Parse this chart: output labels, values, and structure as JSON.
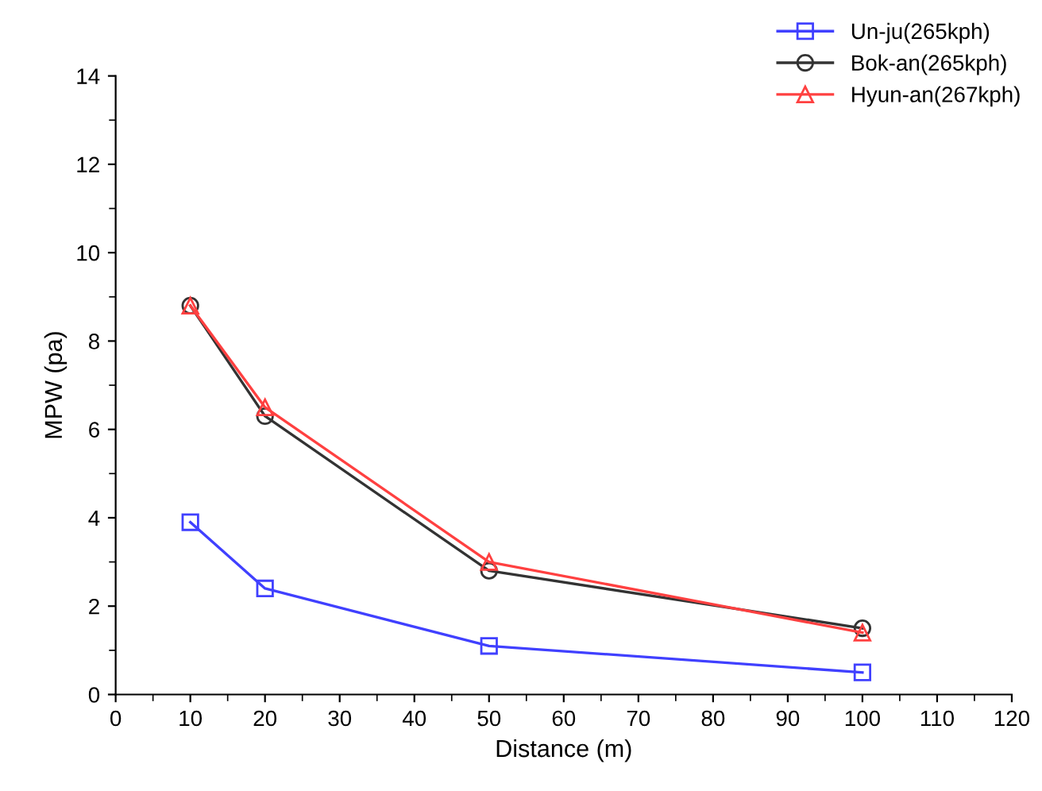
{
  "chart_data": {
    "type": "line",
    "xlabel": "Distance (m)",
    "ylabel": "MPW (pa)",
    "x": [
      10,
      20,
      50,
      100
    ],
    "series": [
      {
        "name": "Un-ju(265kph)",
        "color": "#4040ff",
        "marker": "square",
        "values": [
          3.9,
          2.4,
          1.1,
          0.5
        ]
      },
      {
        "name": "Bok-an(265kph)",
        "color": "#333333",
        "marker": "circle",
        "values": [
          8.8,
          6.3,
          2.8,
          1.5
        ]
      },
      {
        "name": "Hyun-an(267kph)",
        "color": "#ff4040",
        "marker": "triangle",
        "values": [
          8.8,
          6.5,
          3.0,
          1.4
        ]
      }
    ],
    "xlim": [
      0,
      120
    ],
    "xticks": [
      0,
      10,
      20,
      30,
      40,
      50,
      60,
      70,
      80,
      90,
      100,
      110,
      120
    ],
    "ylim": [
      0,
      14
    ],
    "yticks": [
      0,
      2,
      4,
      6,
      8,
      10,
      12,
      14
    ],
    "grid": false,
    "legend": "top right",
    "line_style": "solid"
  }
}
